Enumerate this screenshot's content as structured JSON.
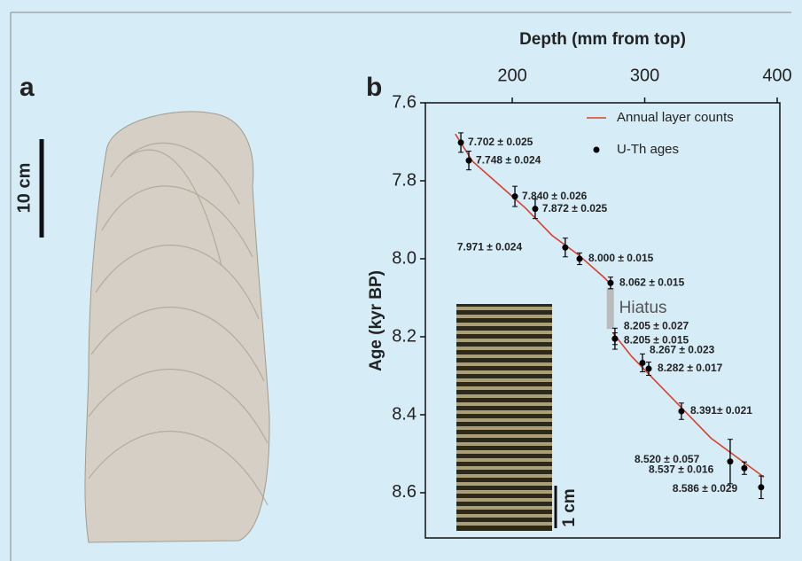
{
  "chart_data": {
    "type": "scatter",
    "panel_labels": [
      "a",
      "b"
    ],
    "scale_bar_labels": [
      "10 cm",
      "1 cm"
    ],
    "x_label": "Depth (mm from top)",
    "y_label": "Age (kyr BP)",
    "xlim": [
      134.4,
      402
    ],
    "xticks": [
      200,
      300,
      400
    ],
    "ylim": [
      7.6,
      8.716
    ],
    "yticks": [
      {
        "value": 7.6,
        "label": "7.6"
      },
      {
        "value": 7.8,
        "label": "7.8"
      },
      {
        "value": 8.0,
        "label": "8.0"
      },
      {
        "value": 8.2,
        "label": "8.2"
      },
      {
        "value": 8.4,
        "label": "8.4"
      },
      {
        "value": 8.6,
        "label": "8.6"
      }
    ],
    "y_inverted": true,
    "legend": "upper right",
    "hiatus": {
      "label": "Hiatus",
      "x": 274,
      "y": [
        8.075,
        8.18
      ],
      "color": "#bbbbbb"
    },
    "series": [
      {
        "name": "Annual layer counts",
        "color": "#d9412b",
        "x": [
          157,
          170,
          190,
          210,
          230,
          250,
          270,
          274,
          275,
          276,
          290,
          310,
          330,
          350,
          370,
          390
        ],
        "values": [
          7.68,
          7.75,
          7.81,
          7.87,
          7.94,
          7.99,
          8.05,
          8.065,
          null,
          8.19,
          8.25,
          8.32,
          8.39,
          8.46,
          8.51,
          8.56
        ]
      },
      {
        "name": "U-Th ages",
        "color": "#000000",
        "x": [
          161.2,
          167.2,
          202,
          217.3,
          240,
          250.8,
          274.2,
          277.5,
          277.5,
          298.3,
          303,
          327.7,
          364.5,
          375.2,
          387.9
        ],
        "values": [
          7.702,
          7.748,
          7.84,
          7.872,
          7.971,
          8.0,
          8.062,
          8.205,
          8.205,
          8.267,
          8.282,
          8.391,
          8.52,
          8.537,
          8.586
        ],
        "errors": [
          0.025,
          0.024,
          0.026,
          0.025,
          0.024,
          0.015,
          0.015,
          0.027,
          0.015,
          0.023,
          0.017,
          0.021,
          0.057,
          0.016,
          0.029
        ],
        "value_labels": [
          "7.702 ± 0.025",
          "7.748 ± 0.024",
          "7.840 ± 0.026",
          "7.872 ± 0.025",
          "7.971 ± 0.024",
          "8.000 ± 0.015",
          "8.062 ± 0.015",
          "8.205 ± 0.027",
          "8.205 ± 0.015",
          "8.267 ± 0.023",
          "8.282 ± 0.017",
          "8.391± 0.021",
          "8.520 ± 0.057",
          "8.537 ± 0.016",
          "8.586 ± 0.029"
        ]
      }
    ]
  }
}
